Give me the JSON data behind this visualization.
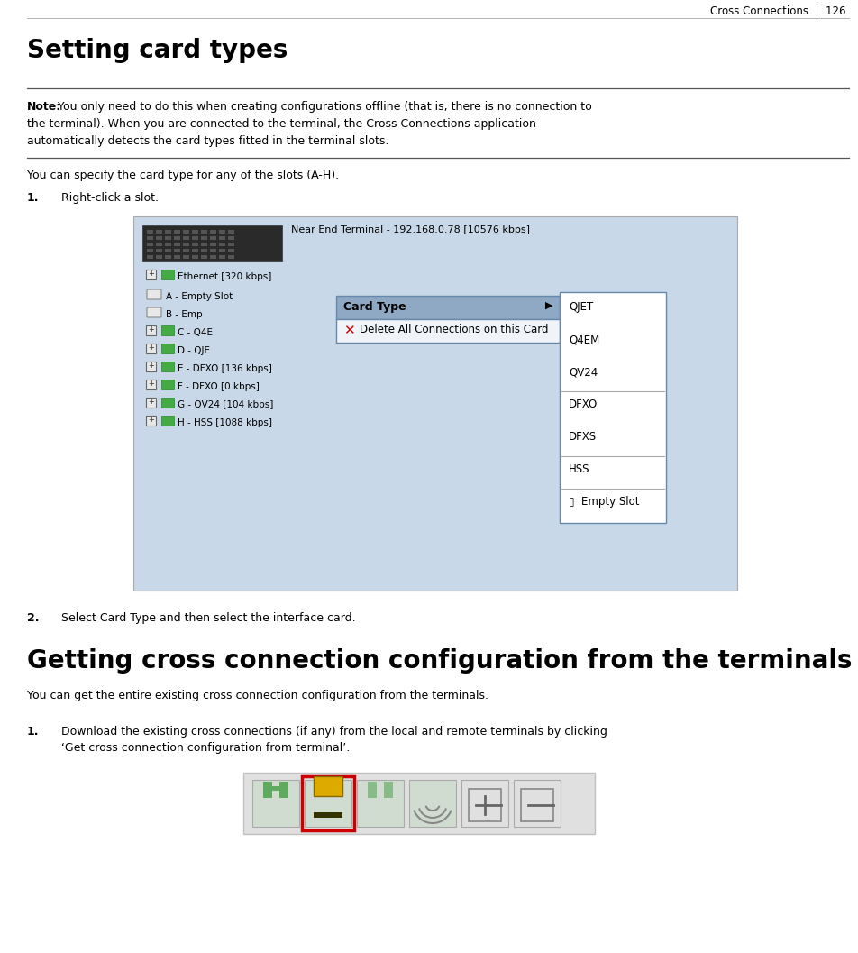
{
  "page_width": 9.52,
  "page_height": 10.57,
  "dpi": 100,
  "bg_color": "#ffffff",
  "header_text": "Cross Connections  |  126",
  "header_fontsize": 8.5,
  "header_color": "#000000",
  "title1": "Setting card types",
  "title1_fontsize": 20,
  "title1_color": "#000000",
  "note_bold": "Note:",
  "note_rest": " You only need to do this when creating configurations offline (that is, there is no connection to\nthe terminal). When you are connected to the terminal, the Cross Connections application\nautomatically detects the card types fitted in the terminal slots.",
  "note_fontsize": 9.0,
  "para1": "You can specify the card type for any of the slots (A-H).",
  "para1_fontsize": 9.0,
  "step1_num": "1.",
  "step1_text": "Right-click a slot.",
  "step2_num": "2.",
  "step2_text": "Select Card Type and then select the interface card.",
  "step_fontsize": 9.0,
  "title2": "Getting cross connection configuration from the terminals",
  "title2_fontsize": 20,
  "title2_color": "#000000",
  "para2": "You can get the entire existing cross connection configuration from the terminals.",
  "para2_fontsize": 9.0,
  "step3_num": "1.",
  "step3_text_line1": "Download the existing cross connections (if any) from the local and remote terminals by clicking",
  "step3_text_line2": "‘Get cross connection configuration from terminal’.",
  "step3_fontsize": 9.0,
  "screenshot_bg": "#c8d8e8",
  "menu_highlight_bg": "#7a96b8",
  "menu_white_bg": "#f0f4f8",
  "submenu_bg": "#ffffff",
  "toolbar_bg": "#e0e0e0",
  "toolbar_border": "#c0c0c0",
  "highlight_red": "#cc0000"
}
